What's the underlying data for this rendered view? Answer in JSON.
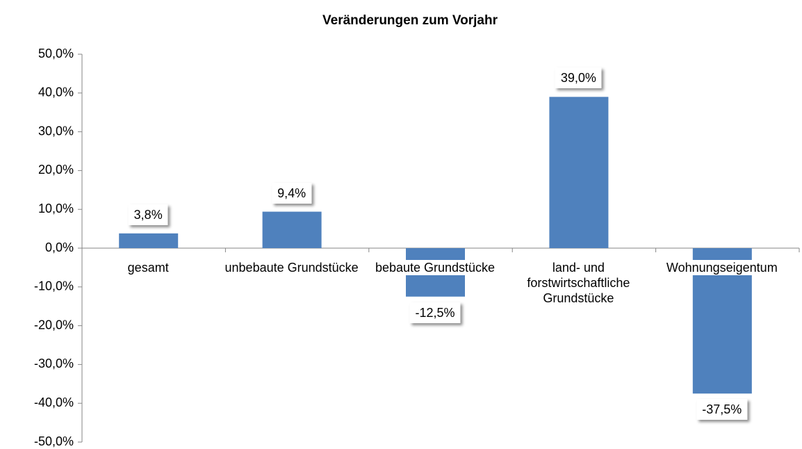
{
  "chart_data": {
    "type": "bar",
    "title": "Veränderungen zum Vorjahr",
    "categories": [
      "gesamt",
      "unbebaute Grundstücke",
      "bebaute Grundstücke",
      "land- und forstwirtschaftliche Grundstücke",
      "Wohnungseigentum"
    ],
    "values": [
      3.8,
      9.4,
      -12.5,
      39.0,
      -37.5
    ],
    "value_labels": [
      "3,8%",
      "9,4%",
      "-12,5%",
      "39,0%",
      "-37,5%"
    ],
    "color": "#4f81bd",
    "ylim": [
      -50,
      50
    ],
    "yticks": [
      {
        "value": -50,
        "label": "-50,0%"
      },
      {
        "value": -40,
        "label": "-40,0%"
      },
      {
        "value": -30,
        "label": "-30,0%"
      },
      {
        "value": -20,
        "label": "-20,0%"
      },
      {
        "value": -10,
        "label": "-10,0%"
      },
      {
        "value": 0,
        "label": "0,0%"
      },
      {
        "value": 10,
        "label": "10,0%"
      },
      {
        "value": 20,
        "label": "20,0%"
      },
      {
        "value": 30,
        "label": "30,0%"
      },
      {
        "value": 40,
        "label": "40,0%"
      },
      {
        "value": 50,
        "label": "50,0%"
      }
    ],
    "grid": false
  }
}
